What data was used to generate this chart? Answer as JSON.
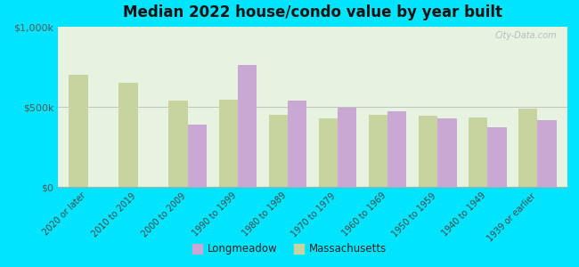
{
  "title": "Median 2022 house/condo value by year built",
  "categories": [
    "2020 or later",
    "2010 to 2019",
    "2000 to 2009",
    "1990 to 1999",
    "1980 to 1989",
    "1970 to 1979",
    "1960 to 1969",
    "1950 to 1959",
    "1940 to 1949",
    "1939 or earlier"
  ],
  "longmeadow": [
    null,
    null,
    390000,
    760000,
    540000,
    495000,
    475000,
    430000,
    375000,
    415000
  ],
  "massachusetts": [
    700000,
    650000,
    540000,
    545000,
    450000,
    430000,
    450000,
    445000,
    435000,
    490000
  ],
  "longmeadow_color": "#c9a8d4",
  "massachusetts_color": "#c8d4a0",
  "background_color": "#e8f2e0",
  "outer_background": "#00e5ff",
  "ylim": [
    0,
    1000000
  ],
  "ytick_labels": [
    "$0",
    "$500k",
    "$1,000k"
  ],
  "bar_width": 0.38,
  "legend_labels": [
    "Longmeadow",
    "Massachusetts"
  ],
  "watermark": "City-Data.com"
}
